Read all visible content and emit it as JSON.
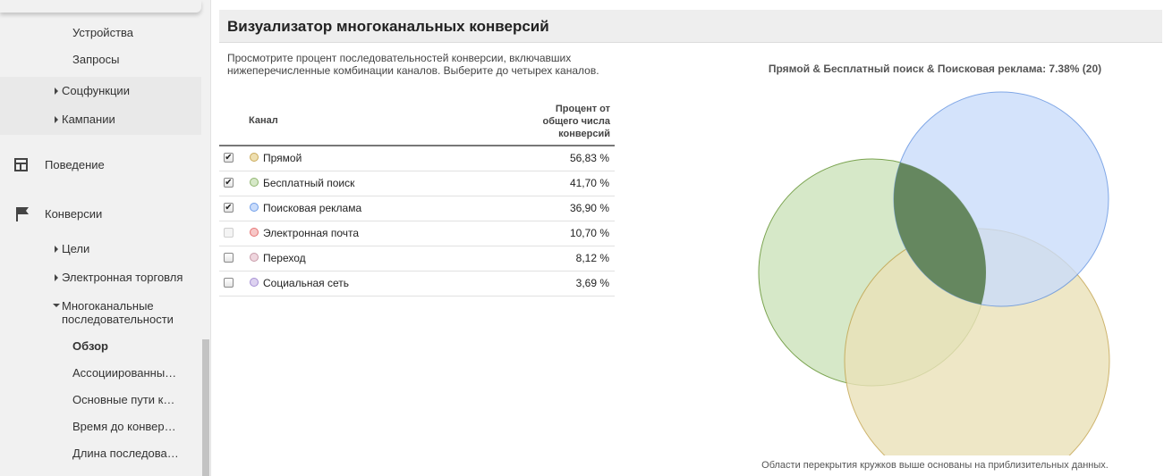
{
  "sidebar": {
    "items_top": [
      "Устройства",
      "Запросы"
    ],
    "groups": [
      "Соцфункции",
      "Кампании"
    ],
    "behavior": "Поведение",
    "conversions": "Конверсии",
    "conversion_items": [
      "Цели",
      "Электронная торговля"
    ],
    "multichannel": [
      "Многоканальные",
      "последовательности"
    ],
    "sub_items": [
      "Обзор",
      "Ассоциированны…",
      "Основные пути к…",
      "Время до конвер…",
      "Длина последова…"
    ],
    "active_item": "Обзор"
  },
  "header": {
    "title": "Визуализатор многоканальных конверсий"
  },
  "description": "Просмотрите процент последовательностей конверсии, включавших нижеперечисленные комбинации каналов. Выберите до четырех каналов.",
  "table": {
    "col_channel": "Канал",
    "col_percent_lines": [
      "Процент от",
      "общего числа",
      "конверсий"
    ],
    "rows": [
      {
        "name": "Прямой",
        "value": "56,83 %",
        "checked": true,
        "enabled": true,
        "fill": "#eedfb0",
        "stroke": "#c9a95a"
      },
      {
        "name": "Бесплатный поиск",
        "value": "41,70 %",
        "checked": true,
        "enabled": true,
        "fill": "#d6e8c8",
        "stroke": "#8fb56e"
      },
      {
        "name": "Поисковая реклама",
        "value": "36,90 %",
        "checked": true,
        "enabled": true,
        "fill": "#c9dcfb",
        "stroke": "#6f9de8"
      },
      {
        "name": "Электронная почта",
        "value": "10,70 %",
        "checked": false,
        "enabled": false,
        "fill": "#f7c7c7",
        "stroke": "#e57373"
      },
      {
        "name": "Переход",
        "value": "8,12 %",
        "checked": false,
        "enabled": true,
        "fill": "#efd6de",
        "stroke": "#c79aa8"
      },
      {
        "name": "Социальная сеть",
        "value": "3,69 %",
        "checked": false,
        "enabled": true,
        "fill": "#ddd2f0",
        "stroke": "#a58fd3"
      }
    ]
  },
  "venn": {
    "title": "Прямой & Бесплатный поиск & Поисковая реклама: 7.38% (20)",
    "note": "Области перекрытия кружков выше основаны на приблизительных данных.",
    "circles": [
      {
        "channel": "Бесплатный поиск",
        "fill": "#d6e8c8",
        "stroke": "#7aa34f"
      },
      {
        "channel": "Прямой",
        "fill": "#ebe2b8",
        "stroke": "#c2a24a"
      },
      {
        "channel": "Поисковая реклама",
        "fill": "#c9dcfb",
        "stroke": "#5d8fe0"
      }
    ],
    "intersection_color": "#65875f"
  }
}
